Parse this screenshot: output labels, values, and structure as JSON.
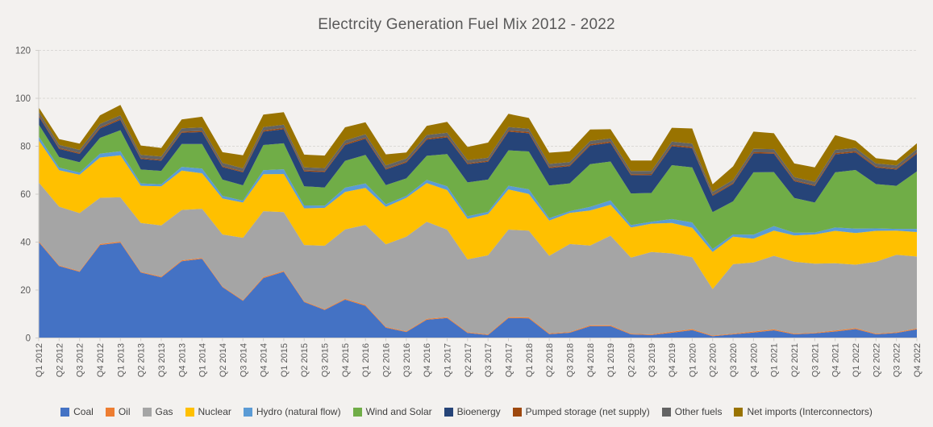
{
  "title": "Electrcity Generation Fuel Mix 2012 - 2022",
  "colors": {
    "background": "#f3f1ef",
    "gridline": "#dbd9d6",
    "axis_line": "#d0cecb",
    "axis_text": "#595959",
    "title_text": "#595959",
    "legend_text": "#404040"
  },
  "chart_data": {
    "type": "area",
    "stacked": true,
    "title": "Electrcity Generation Fuel Mix 2012 - 2022",
    "xlabel": "",
    "ylabel": "",
    "ylim": [
      0,
      120
    ],
    "yticks": [
      0,
      20,
      40,
      60,
      80,
      100,
      120
    ],
    "grid": "horizontal-dashed",
    "legend_position": "bottom",
    "categories": [
      "Q1 2012",
      "Q2 2012",
      "Q3 2012",
      "Q4 2012",
      "Q1 2013",
      "Q2 2013",
      "Q3 2013",
      "Q4 2013",
      "Q1 2014",
      "Q2 2014",
      "Q3 2014",
      "Q4 2014",
      "Q1 2015",
      "Q2 2015",
      "Q3 2015",
      "Q4 2015",
      "Q1 2016",
      "Q2 2016",
      "Q3 2016",
      "Q4 2016",
      "Q1 2017",
      "Q2 2017",
      "Q3 2017",
      "Q4 2017",
      "Q1 2018",
      "Q2 2018",
      "Q3 2018",
      "Q4 2018",
      "Q1 2019",
      "Q2 2019",
      "Q3 2019",
      "Q4 2019",
      "Q1 2020",
      "Q2 2020",
      "Q3 2020",
      "Q4 2020",
      "Q1 2021",
      "Q2 2021",
      "Q3 2021",
      "Q4 2021",
      "Q1 2022",
      "Q2 2022",
      "Q3 2022",
      "Q4 2022"
    ],
    "series": [
      {
        "name": "Coal",
        "color": "#4472c4",
        "values": [
          40.0,
          30.0,
          27.6,
          38.8,
          39.8,
          27.3,
          25.3,
          32.0,
          33.0,
          21.2,
          15.5,
          25.0,
          27.6,
          15.0,
          11.7,
          16.0,
          13.4,
          4.3,
          2.5,
          7.6,
          8.3,
          2.1,
          1.2,
          8.3,
          8.2,
          1.6,
          2.2,
          4.9,
          4.9,
          1.5,
          1.2,
          2.2,
          3.3,
          0.7,
          1.5,
          2.3,
          3.2,
          1.5,
          1.9,
          2.7,
          3.7,
          1.5,
          2.1,
          3.6
        ]
      },
      {
        "name": "Oil",
        "color": "#ed7d31",
        "values": [
          0.4,
          0.3,
          0.3,
          0.4,
          0.4,
          0.3,
          0.3,
          0.4,
          0.4,
          0.3,
          0.3,
          0.4,
          0.4,
          0.3,
          0.3,
          0.4,
          0.4,
          0.3,
          0.3,
          0.4,
          0.4,
          0.3,
          0.3,
          0.4,
          0.4,
          0.3,
          0.3,
          0.4,
          0.4,
          0.3,
          0.3,
          0.4,
          0.4,
          0.3,
          0.3,
          0.4,
          0.4,
          0.3,
          0.3,
          0.4,
          0.4,
          0.3,
          0.3,
          0.4
        ]
      },
      {
        "name": "Gas",
        "color": "#a5a5a5",
        "values": [
          24.5,
          24.5,
          24.2,
          19.3,
          18.5,
          20.4,
          21.4,
          21.0,
          20.5,
          21.7,
          26.0,
          27.5,
          24.5,
          23.5,
          26.5,
          28.9,
          33.4,
          34.5,
          39.5,
          40.5,
          36.5,
          30.4,
          33.0,
          36.5,
          36.2,
          32.4,
          36.7,
          33.3,
          37.4,
          31.7,
          34.4,
          32.7,
          30.0,
          19.4,
          29.0,
          28.8,
          30.7,
          30.0,
          28.8,
          28.1,
          26.5,
          30.0,
          32.3,
          30.0
        ]
      },
      {
        "name": "Nuclear",
        "color": "#ffc000",
        "values": [
          17.6,
          15.2,
          16.0,
          16.8,
          17.5,
          15.5,
          16.3,
          16.4,
          14.8,
          15.0,
          14.7,
          15.4,
          15.9,
          15.3,
          15.8,
          15.6,
          15.4,
          15.6,
          16.2,
          16.1,
          16.5,
          16.9,
          17.2,
          16.8,
          15.3,
          14.7,
          13.0,
          14.6,
          12.9,
          12.6,
          11.8,
          12.7,
          12.3,
          15.5,
          11.5,
          9.9,
          10.5,
          11.0,
          12.2,
          13.5,
          13.2,
          12.9,
          10.1,
          10.2
        ]
      },
      {
        "name": "Hydro (natural flow)",
        "color": "#5b9bd5",
        "values": [
          1.6,
          1.1,
          0.9,
          1.6,
          1.7,
          1.0,
          0.8,
          1.6,
          2.0,
          1.1,
          0.8,
          1.7,
          2.0,
          1.2,
          0.9,
          1.8,
          1.9,
          1.1,
          0.8,
          1.4,
          1.6,
          1.1,
          0.9,
          1.5,
          1.9,
          1.0,
          0.7,
          1.5,
          1.8,
          1.0,
          0.8,
          1.6,
          2.2,
          1.2,
          0.9,
          1.7,
          1.9,
          1.1,
          0.8,
          1.4,
          1.8,
          1.0,
          0.7,
          1.3
        ]
      },
      {
        "name": "Wind and Solar",
        "color": "#70ad47",
        "values": [
          5.0,
          4.4,
          4.3,
          6.6,
          8.8,
          5.8,
          5.6,
          9.5,
          10.2,
          6.8,
          6.4,
          10.5,
          10.8,
          8.0,
          7.6,
          11.2,
          11.9,
          8.0,
          7.3,
          10.0,
          13.4,
          14.1,
          13.5,
          14.8,
          15.8,
          13.6,
          11.6,
          17.8,
          16.2,
          13.2,
          12.0,
          22.5,
          23.0,
          15.4,
          13.8,
          26.0,
          22.5,
          14.5,
          12.5,
          23.0,
          24.5,
          18.5,
          18.0,
          24.0
        ]
      },
      {
        "name": "Bioenergy",
        "color": "#264478",
        "values": [
          3.4,
          3.4,
          3.5,
          3.9,
          4.3,
          4.4,
          4.3,
          4.7,
          5.0,
          5.2,
          5.4,
          5.6,
          5.9,
          6.2,
          6.4,
          6.6,
          6.7,
          6.5,
          6.6,
          6.8,
          7.0,
          7.6,
          7.4,
          7.8,
          7.6,
          7.3,
          7.2,
          7.8,
          7.8,
          7.6,
          7.5,
          7.9,
          8.0,
          6.8,
          7.3,
          7.9,
          7.7,
          7.0,
          6.9,
          7.5,
          7.3,
          6.9,
          6.8,
          7.4
        ]
      },
      {
        "name": "Pumped storage (net supply)",
        "color": "#9e480e",
        "values": [
          0.5,
          0.4,
          0.4,
          0.5,
          0.5,
          0.4,
          0.4,
          0.5,
          0.5,
          0.4,
          0.4,
          0.5,
          0.5,
          0.4,
          0.4,
          0.5,
          0.5,
          0.4,
          0.4,
          0.5,
          0.5,
          0.4,
          0.4,
          0.5,
          0.5,
          0.4,
          0.4,
          0.5,
          0.5,
          0.4,
          0.4,
          0.5,
          0.5,
          0.4,
          0.4,
          0.5,
          0.5,
          0.4,
          0.4,
          0.5,
          0.5,
          0.4,
          0.4,
          0.5
        ]
      },
      {
        "name": "Other fuels",
        "color": "#636363",
        "values": [
          1.4,
          1.3,
          1.3,
          1.4,
          1.4,
          1.3,
          1.3,
          1.4,
          1.4,
          1.3,
          1.3,
          1.4,
          1.4,
          1.3,
          1.3,
          1.4,
          1.4,
          1.3,
          1.3,
          1.4,
          1.4,
          1.3,
          1.3,
          1.4,
          1.4,
          1.3,
          1.3,
          1.4,
          1.4,
          1.3,
          1.3,
          1.4,
          1.4,
          1.2,
          1.3,
          1.4,
          1.4,
          1.3,
          1.3,
          1.4,
          1.4,
          1.3,
          1.3,
          1.4
        ]
      },
      {
        "name": "Net imports (Interconnectors)",
        "color": "#997300",
        "values": [
          1.8,
          2.4,
          2.6,
          3.6,
          4.3,
          3.9,
          3.6,
          3.7,
          4.5,
          4.5,
          5.4,
          5.2,
          5.2,
          5.3,
          5.2,
          5.5,
          5.0,
          4.6,
          2.5,
          3.8,
          4.6,
          5.5,
          6.3,
          5.5,
          4.5,
          4.7,
          4.5,
          4.8,
          3.8,
          4.4,
          4.3,
          5.8,
          6.3,
          3.2,
          5.6,
          7.2,
          6.6,
          5.7,
          6.1,
          6.1,
          3.0,
          2.2,
          2.0,
          2.4
        ]
      }
    ]
  }
}
